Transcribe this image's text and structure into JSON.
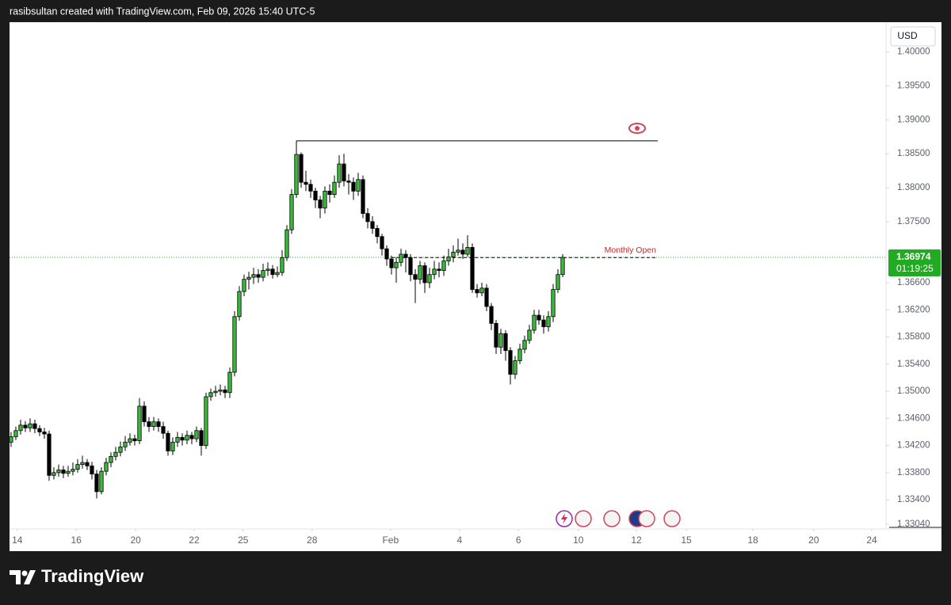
{
  "header_text": "rasibsultan created with TradingView.com, Feb 09, 2026 15:40 UTC-5",
  "brand": "TradingView",
  "chart_data": {
    "type": "candlestick",
    "currency": "USD",
    "up_color": "#3cb83c",
    "down_color": "#000000",
    "price_line_color": "#22ab22",
    "last_price": 1.36974,
    "countdown": "01:19:25",
    "xlim": [
      -0.33,
      184
    ],
    "ylim": [
      1.3297,
      1.4044
    ],
    "grid": false,
    "xticks": [
      {
        "value": 1.3,
        "label": "14"
      },
      {
        "value": 13.7,
        "label": "16"
      },
      {
        "value": 26.2,
        "label": "20"
      },
      {
        "value": 38.5,
        "label": "22"
      },
      {
        "value": 48.8,
        "label": "25"
      },
      {
        "value": 63.3,
        "label": "28"
      },
      {
        "value": 79.8,
        "label": "Feb"
      },
      {
        "value": 94.3,
        "label": "4"
      },
      {
        "value": 106.7,
        "label": "6"
      },
      {
        "value": 119.3,
        "label": "10"
      },
      {
        "value": 131.5,
        "label": "12"
      },
      {
        "value": 142,
        "label": "15"
      },
      {
        "value": 156,
        "label": "18"
      },
      {
        "value": 168.8,
        "label": "20"
      },
      {
        "value": 181,
        "label": "24"
      }
    ],
    "yticks": [
      {
        "value": 1.4,
        "label": "1.40000"
      },
      {
        "value": 1.395,
        "label": "1.39500"
      },
      {
        "value": 1.39,
        "label": "1.39000"
      },
      {
        "value": 1.385,
        "label": "1.38500"
      },
      {
        "value": 1.38,
        "label": "1.38000"
      },
      {
        "value": 1.375,
        "label": "1.37500"
      },
      {
        "value": 1.366,
        "label": "1.36600"
      },
      {
        "value": 1.362,
        "label": "1.36200"
      },
      {
        "value": 1.358,
        "label": "1.35800"
      },
      {
        "value": 1.354,
        "label": "1.35400"
      },
      {
        "value": 1.35,
        "label": "1.35000"
      },
      {
        "value": 1.346,
        "label": "1.34600"
      },
      {
        "value": 1.342,
        "label": "1.34200"
      },
      {
        "value": 1.338,
        "label": "1.33800"
      },
      {
        "value": 1.334,
        "label": "1.33400"
      },
      {
        "value": 1.3304,
        "label": "1.33040"
      }
    ],
    "levels": [
      {
        "price": 1.3869,
        "x": [
          60,
          136
        ],
        "color": "#000000",
        "style": "solid"
      },
      {
        "name": "Monthly Open",
        "price": 1.3697,
        "x": [
          80,
          136
        ],
        "color": "#000000",
        "label_color": "#c62828",
        "style": "dashed"
      }
    ],
    "x": [
      0,
      1,
      2,
      3,
      4,
      5,
      6,
      7,
      8,
      9,
      10,
      11,
      12,
      13,
      14,
      15,
      16,
      17,
      18,
      19,
      20,
      21,
      22,
      23,
      24,
      25,
      26,
      27,
      28,
      29,
      30,
      31,
      32,
      33,
      34,
      35,
      36,
      37,
      38,
      39,
      40,
      41,
      42,
      43,
      44,
      45,
      46,
      47,
      48,
      49,
      50,
      51,
      52,
      53,
      54,
      55,
      56,
      57,
      58,
      59,
      60,
      61,
      62,
      63,
      64,
      65,
      66,
      67,
      68,
      69,
      70,
      71,
      72,
      73,
      74,
      75,
      76,
      77,
      78,
      79,
      80,
      81,
      82,
      83,
      84,
      85,
      86,
      87,
      88,
      89,
      90,
      91,
      92,
      93,
      94,
      95,
      96,
      97,
      98,
      99,
      100,
      101,
      102,
      103,
      104,
      105,
      106,
      107,
      108,
      109,
      110,
      111,
      112,
      113,
      114,
      115,
      116
    ],
    "open": [
      1.3425,
      1.3433,
      1.3442,
      1.345,
      1.3446,
      1.3452,
      1.3445,
      1.344,
      1.3437,
      1.3376,
      1.338,
      1.3384,
      1.3379,
      1.3382,
      1.3385,
      1.3392,
      1.3395,
      1.339,
      1.3378,
      1.3352,
      1.3382,
      1.3395,
      1.3404,
      1.341,
      1.3418,
      1.3425,
      1.343,
      1.3427,
      1.3478,
      1.3455,
      1.3448,
      1.3455,
      1.3448,
      1.3438,
      1.3412,
      1.3425,
      1.3432,
      1.3428,
      1.3435,
      1.343,
      1.3442,
      1.342,
      1.3492,
      1.3498,
      1.35,
      1.3502,
      1.3498,
      1.3528,
      1.361,
      1.3647,
      1.3665,
      1.3668,
      1.3672,
      1.3668,
      1.3678,
      1.368,
      1.3672,
      1.3675,
      1.3697,
      1.3738,
      1.379,
      1.3849,
      1.3808,
      1.3805,
      1.3795,
      1.3782,
      1.377,
      1.3795,
      1.379,
      1.3808,
      1.3835,
      1.381,
      1.3808,
      1.3795,
      1.3812,
      1.3762,
      1.375,
      1.374,
      1.3728,
      1.371,
      1.3695,
      1.3682,
      1.369,
      1.3702,
      1.3697,
      1.3672,
      1.3665,
      1.3685,
      1.366,
      1.3672,
      1.368,
      1.3678,
      1.3692,
      1.3698,
      1.3705,
      1.3708,
      1.3702,
      1.3712,
      1.365,
      1.3645,
      1.3652,
      1.3625,
      1.36,
      1.3565,
      1.3585,
      1.356,
      1.3525,
      1.3545,
      1.3562,
      1.3575,
      1.359,
      1.3612,
      1.3605,
      1.3595,
      1.361,
      1.365,
      1.3672
    ],
    "high": [
      1.344,
      1.3448,
      1.3458,
      1.3456,
      1.346,
      1.3458,
      1.345,
      1.3446,
      1.3442,
      1.3388,
      1.3392,
      1.339,
      1.339,
      1.3395,
      1.34,
      1.3405,
      1.34,
      1.3396,
      1.3384,
      1.3388,
      1.3402,
      1.341,
      1.3418,
      1.3426,
      1.3434,
      1.3438,
      1.3436,
      1.349,
      1.3485,
      1.3462,
      1.3462,
      1.346,
      1.3455,
      1.3442,
      1.3432,
      1.344,
      1.3438,
      1.3442,
      1.344,
      1.3448,
      1.3446,
      1.3498,
      1.3504,
      1.3508,
      1.351,
      1.3508,
      1.3535,
      1.3618,
      1.3655,
      1.3672,
      1.3676,
      1.3682,
      1.368,
      1.3688,
      1.369,
      1.3686,
      1.3684,
      1.3708,
      1.3745,
      1.3798,
      1.3869,
      1.3852,
      1.3825,
      1.3812,
      1.38,
      1.3788,
      1.3802,
      1.3805,
      1.3818,
      1.3848,
      1.385,
      1.382,
      1.3815,
      1.3822,
      1.3818,
      1.377,
      1.3758,
      1.3745,
      1.3732,
      1.3715,
      1.37,
      1.3698,
      1.371,
      1.3708,
      1.3702,
      1.368,
      1.3692,
      1.369,
      1.3682,
      1.3692,
      1.369,
      1.37,
      1.371,
      1.3715,
      1.3725,
      1.3718,
      1.373,
      1.3718,
      1.3658,
      1.366,
      1.3658,
      1.363,
      1.3605,
      1.3592,
      1.359,
      1.3565,
      1.3552,
      1.357,
      1.3582,
      1.3598,
      1.362,
      1.362,
      1.3612,
      1.3618,
      1.3658,
      1.368,
      1.3702
    ],
    "low": [
      1.3418,
      1.3428,
      1.3436,
      1.344,
      1.344,
      1.3438,
      1.3434,
      1.343,
      1.3368,
      1.337,
      1.3374,
      1.3372,
      1.3374,
      1.3376,
      1.338,
      1.3386,
      1.3384,
      1.337,
      1.3342,
      1.3348,
      1.3376,
      1.3388,
      1.3398,
      1.3404,
      1.3412,
      1.342,
      1.342,
      1.3422,
      1.3448,
      1.344,
      1.3442,
      1.344,
      1.343,
      1.3405,
      1.3406,
      1.3418,
      1.342,
      1.3422,
      1.3422,
      1.3425,
      1.3405,
      1.3415,
      1.3486,
      1.3492,
      1.3494,
      1.349,
      1.349,
      1.3522,
      1.3604,
      1.364,
      1.365,
      1.3658,
      1.366,
      1.3662,
      1.367,
      1.3666,
      1.3668,
      1.367,
      1.3692,
      1.3732,
      1.3785,
      1.38,
      1.3795,
      1.3785,
      1.377,
      1.3755,
      1.3762,
      1.3778,
      1.3785,
      1.38,
      1.3802,
      1.379,
      1.3782,
      1.3788,
      1.3755,
      1.374,
      1.3732,
      1.3718,
      1.37,
      1.3685,
      1.3672,
      1.366,
      1.3684,
      1.3675,
      1.3662,
      1.363,
      1.3658,
      1.3645,
      1.3652,
      1.3665,
      1.3668,
      1.367,
      1.3685,
      1.369,
      1.37,
      1.3695,
      1.3698,
      1.3645,
      1.3638,
      1.364,
      1.3618,
      1.359,
      1.3555,
      1.3555,
      1.3545,
      1.351,
      1.3518,
      1.354,
      1.3556,
      1.357,
      1.3585,
      1.3598,
      1.3585,
      1.3588,
      1.3602,
      1.3645,
      1.3668
    ],
    "close": [
      1.3433,
      1.3442,
      1.345,
      1.3446,
      1.3452,
      1.3445,
      1.344,
      1.3437,
      1.3376,
      1.338,
      1.3384,
      1.3379,
      1.3382,
      1.3385,
      1.3392,
      1.3395,
      1.339,
      1.3378,
      1.3352,
      1.3382,
      1.3395,
      1.3404,
      1.341,
      1.3418,
      1.3425,
      1.343,
      1.3427,
      1.3478,
      1.3455,
      1.3448,
      1.3455,
      1.3448,
      1.3438,
      1.3412,
      1.3425,
      1.3432,
      1.3428,
      1.3435,
      1.343,
      1.3442,
      1.342,
      1.3492,
      1.3498,
      1.35,
      1.3502,
      1.3498,
      1.3528,
      1.361,
      1.3647,
      1.3665,
      1.3668,
      1.3672,
      1.3668,
      1.3678,
      1.368,
      1.3672,
      1.3675,
      1.3697,
      1.3738,
      1.379,
      1.3849,
      1.3808,
      1.3805,
      1.3795,
      1.3782,
      1.377,
      1.3795,
      1.379,
      1.3808,
      1.3835,
      1.381,
      1.3808,
      1.3795,
      1.3812,
      1.3762,
      1.375,
      1.374,
      1.3728,
      1.371,
      1.3695,
      1.3682,
      1.369,
      1.3702,
      1.3697,
      1.3672,
      1.3665,
      1.3685,
      1.366,
      1.3672,
      1.368,
      1.3678,
      1.3692,
      1.3698,
      1.3705,
      1.3708,
      1.3702,
      1.3712,
      1.365,
      1.3645,
      1.3652,
      1.3625,
      1.36,
      1.3565,
      1.3585,
      1.356,
      1.3525,
      1.3545,
      1.3562,
      1.3575,
      1.359,
      1.3612,
      1.3605,
      1.3595,
      1.361,
      1.365,
      1.3672,
      1.36974
    ]
  }
}
